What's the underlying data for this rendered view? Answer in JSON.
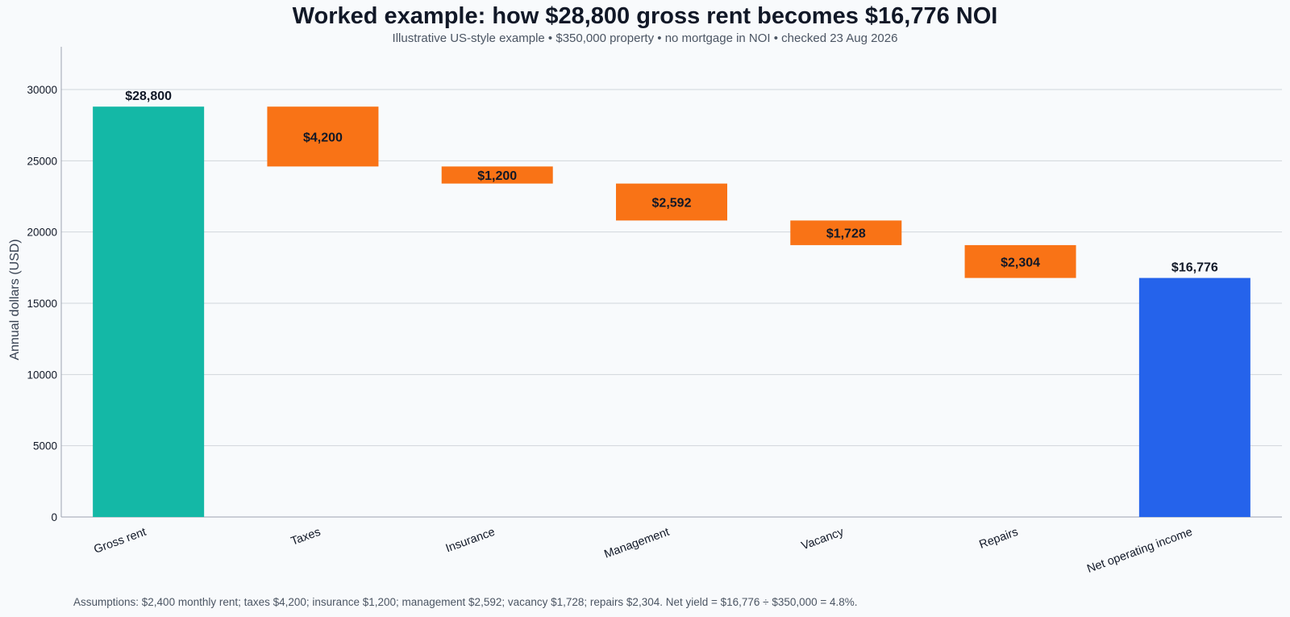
{
  "chart_data": {
    "type": "bar",
    "title": "Worked example: how $28,800 gross rent becomes $16,776 NOI",
    "subtitle": "Illustrative US-style example • $350,000 property • no mortgage in NOI • checked 23 Aug 2026",
    "ylabel": "Annual dollars (USD)",
    "xlabel": "",
    "ylim": [
      0,
      33000
    ],
    "yticks": [
      0,
      5000,
      10000,
      15000,
      20000,
      25000,
      30000
    ],
    "grid": true,
    "categories": [
      "Gross rent",
      "Taxes",
      "Insurance",
      "Management",
      "Vacancy",
      "Repairs",
      "Net operating income"
    ],
    "steps": [
      {
        "kind": "total",
        "start": 0,
        "end": 28800,
        "label": "$28,800"
      },
      {
        "kind": "decrease",
        "start": 28800,
        "end": 24600,
        "label": "$4,200"
      },
      {
        "kind": "decrease",
        "start": 24600,
        "end": 23400,
        "label": "$1,200"
      },
      {
        "kind": "decrease",
        "start": 23400,
        "end": 20808,
        "label": "$2,592"
      },
      {
        "kind": "decrease",
        "start": 20808,
        "end": 19080,
        "label": "$1,728"
      },
      {
        "kind": "decrease",
        "start": 19080,
        "end": 16776,
        "label": "$2,304"
      },
      {
        "kind": "total",
        "start": 0,
        "end": 16776,
        "label": "$16,776"
      }
    ],
    "colors": {
      "gross": "#14b8a6",
      "decrease": "#f97316",
      "net": "#2563eb"
    },
    "footnote": "Assumptions: $2,400 monthly rent; taxes $4,200; insurance $1,200; management $2,592; vacancy $1,728; repairs $2,304. Net yield = $16,776 ÷ $350,000 = 4.8%."
  }
}
